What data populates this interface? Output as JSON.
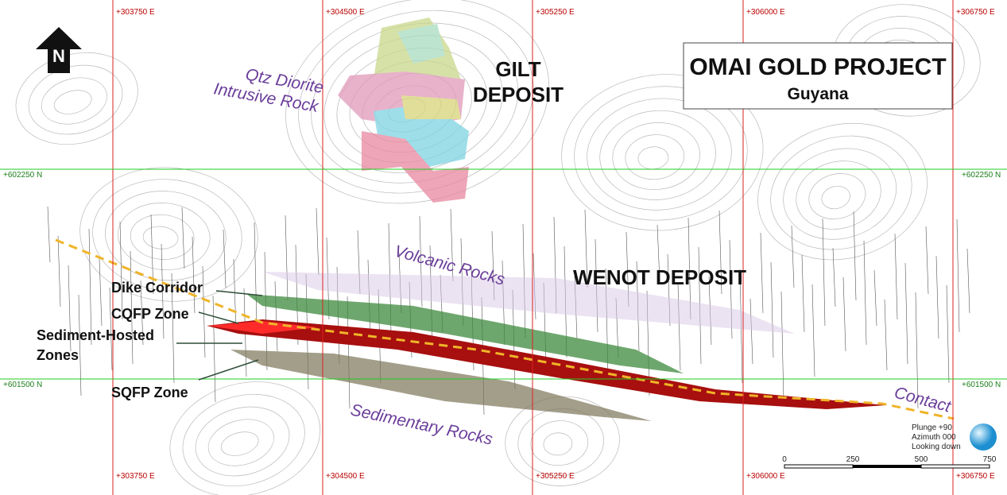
{
  "title": "OMAI GOLD PROJECT",
  "subtitle": "Guyana",
  "north": "N",
  "grid": {
    "eastings": [
      "+303750 E",
      "+304500 E",
      "+305250 E",
      "+306000 E",
      "+306750 E"
    ],
    "northings": [
      "+602250 N",
      "+601500 N"
    ]
  },
  "deposits": [
    "GILT",
    "DEPOSIT",
    "WENOT DEPOSIT"
  ],
  "rocks": {
    "intrusive": [
      "Qtz Diorite",
      "Intrusive Rock"
    ],
    "volcanic": "Volcanic Rocks",
    "sedimentary": "Sedimentary Rocks",
    "contact": "Contact"
  },
  "zones": [
    "Dike Corridor",
    "CQFP Zone",
    "Sediment-Hosted",
    "Zones",
    "SQFP Zone"
  ],
  "view": [
    "Plunge +90",
    "Azimuth 000",
    "Looking down"
  ],
  "scale": [
    0,
    250,
    500,
    750
  ]
}
